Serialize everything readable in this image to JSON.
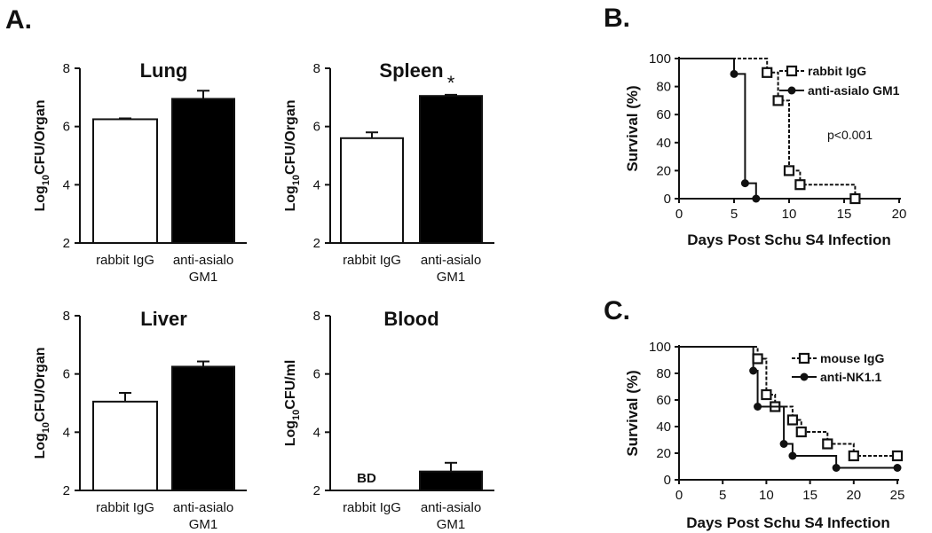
{
  "panel_letters": {
    "a": "A.",
    "b": "B.",
    "c": "C."
  },
  "colors": {
    "ink": "#111111",
    "filled": "#000000",
    "open": "#ffffff"
  },
  "chart_data": [
    {
      "type": "bar",
      "title": "Lung",
      "ylabel_pre": "Log",
      "ylabel_sub": "10",
      "ylabel_post": "CFU/Organ",
      "ylim": [
        2,
        8
      ],
      "yticks": [
        2,
        4,
        6,
        8
      ],
      "categories": [
        "rabbit IgG",
        "anti-asialo GM1"
      ],
      "category_lines": [
        [
          "rabbit IgG"
        ],
        [
          "anti-asialo",
          "GM1"
        ]
      ],
      "values": [
        6.25,
        6.95
      ],
      "errors": [
        0.03,
        0.28
      ],
      "fills": [
        "open",
        "filled"
      ],
      "annotations": []
    },
    {
      "type": "bar",
      "title": "Spleen",
      "ylabel_pre": "Log",
      "ylabel_sub": "10",
      "ylabel_post": "CFU/Organ",
      "ylim": [
        2,
        8
      ],
      "yticks": [
        2,
        4,
        6,
        8
      ],
      "categories": [
        "rabbit IgG",
        "anti-asialo GM1"
      ],
      "category_lines": [
        [
          "rabbit IgG"
        ],
        [
          "anti-asialo",
          "GM1"
        ]
      ],
      "values": [
        5.6,
        7.05
      ],
      "errors": [
        0.2,
        0.04
      ],
      "fills": [
        "open",
        "filled"
      ],
      "annotations": [
        {
          "bar": 1,
          "text": "*"
        }
      ]
    },
    {
      "type": "bar",
      "title": "Liver",
      "ylabel_pre": "Log",
      "ylabel_sub": "10",
      "ylabel_post": "CFU/Organ",
      "ylim": [
        2,
        8
      ],
      "yticks": [
        2,
        4,
        6,
        8
      ],
      "categories": [
        "rabbit IgG",
        "anti-asialo GM1"
      ],
      "category_lines": [
        [
          "rabbit IgG"
        ],
        [
          "anti-asialo",
          "GM1"
        ]
      ],
      "values": [
        5.05,
        6.25
      ],
      "errors": [
        0.3,
        0.18
      ],
      "fills": [
        "open",
        "filled"
      ],
      "annotations": []
    },
    {
      "type": "bar",
      "title": "Blood",
      "ylabel_pre": "Log",
      "ylabel_sub": "10",
      "ylabel_post": "CFU/ml",
      "ylim": [
        2,
        8
      ],
      "yticks": [
        2,
        4,
        6,
        8
      ],
      "categories": [
        "rabbit IgG",
        "anti-asialo GM1"
      ],
      "category_lines": [
        [
          "rabbit IgG"
        ],
        [
          "anti-asialo",
          "GM1"
        ]
      ],
      "values": [
        null,
        2.65
      ],
      "errors": [
        null,
        0.3
      ],
      "fills": [
        "open",
        "filled"
      ],
      "annotations": [
        {
          "bar": 0,
          "text": "BD"
        }
      ]
    },
    {
      "type": "line",
      "subtype": "survival",
      "panel": "B",
      "xlabel": "Days Post Schu S4 Infection",
      "ylabel": "Survival (%)",
      "xlim": [
        0,
        20
      ],
      "ylim": [
        0,
        100
      ],
      "xticks": [
        0,
        5,
        10,
        15,
        20
      ],
      "yticks": [
        0,
        20,
        40,
        60,
        80,
        100
      ],
      "annotation": "p<0.001",
      "series": [
        {
          "name": "rabbit IgG",
          "marker": "square",
          "dash": true,
          "x": [
            0,
            8,
            9,
            10,
            11,
            16
          ],
          "y": [
            100,
            90,
            70,
            20,
            10,
            0
          ],
          "markers_x": [
            8,
            9,
            10,
            11,
            16
          ],
          "markers_y": [
            90,
            70,
            20,
            10,
            0
          ]
        },
        {
          "name": "anti-asialo GM1",
          "marker": "circle",
          "dash": false,
          "x": [
            0,
            5,
            6,
            7
          ],
          "y": [
            100,
            89,
            11,
            0
          ],
          "markers_x": [
            5,
            6,
            7
          ],
          "markers_y": [
            89,
            11,
            0
          ]
        }
      ]
    },
    {
      "type": "line",
      "subtype": "survival",
      "panel": "C",
      "xlabel": "Days Post Schu S4 Infection",
      "ylabel": "Survival (%)",
      "xlim": [
        0,
        25
      ],
      "ylim": [
        0,
        100
      ],
      "xticks": [
        0,
        5,
        10,
        15,
        20,
        25
      ],
      "yticks": [
        0,
        20,
        40,
        60,
        80,
        100
      ],
      "annotation": "",
      "series": [
        {
          "name": "mouse IgG",
          "marker": "square",
          "dash": true,
          "x": [
            0,
            9,
            10,
            11,
            13,
            14,
            17,
            20,
            25
          ],
          "y": [
            100,
            91,
            64,
            55,
            45,
            36,
            27,
            18,
            18
          ],
          "markers_x": [
            9,
            10,
            11,
            13,
            14,
            17,
            20,
            25
          ],
          "markers_y": [
            91,
            64,
            55,
            45,
            36,
            27,
            18,
            18
          ]
        },
        {
          "name": "anti-NK1.1",
          "marker": "circle",
          "dash": false,
          "x": [
            0,
            8.5,
            9,
            12,
            13,
            18,
            25
          ],
          "y": [
            100,
            82,
            55,
            27,
            18,
            9,
            9
          ],
          "markers_x": [
            8.5,
            9,
            12,
            13,
            18,
            25
          ],
          "markers_y": [
            82,
            55,
            27,
            18,
            9,
            9
          ]
        }
      ]
    }
  ]
}
